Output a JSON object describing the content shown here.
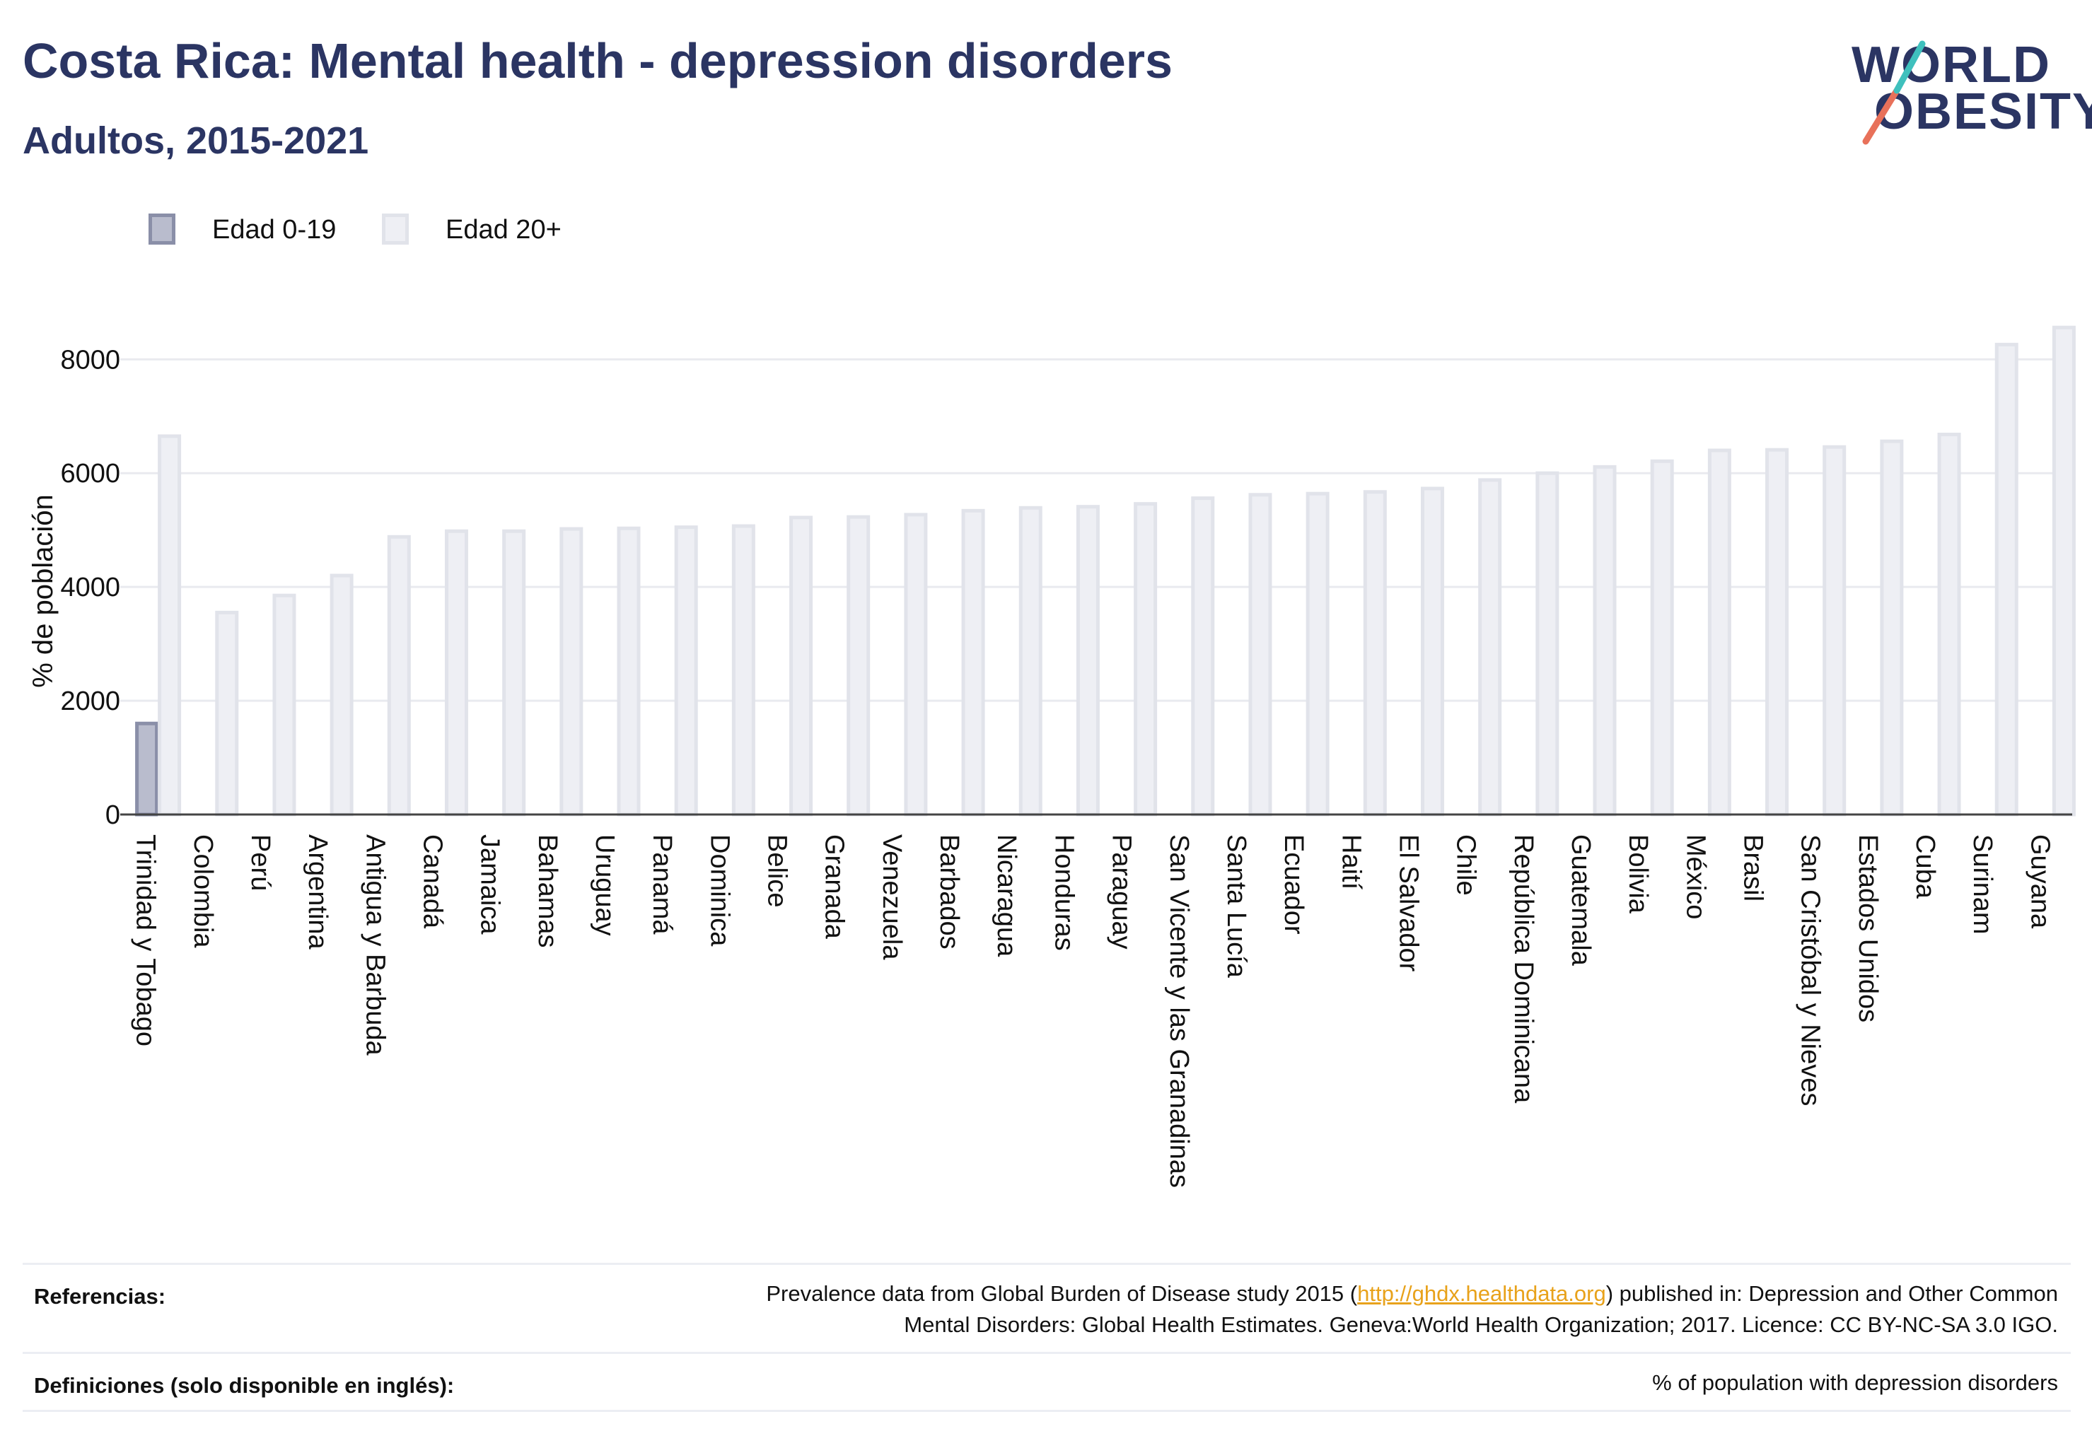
{
  "header": {
    "title": "Costa Rica: Mental health - depression disorders",
    "subtitle": "Adultos, 2015-2021"
  },
  "logo": {
    "line1": "WORLD",
    "line2": "OBESITY",
    "text_color": "#2b3563",
    "slash_colors": [
      "#e8715a",
      "#3fc0bd"
    ]
  },
  "legend": [
    {
      "label": "Edad 0-19",
      "fill": "#b9bccd",
      "stroke": "#8a8fa8"
    },
    {
      "label": "Edad 20+",
      "fill": "#eeeff4",
      "stroke": "#e1e3ea"
    }
  ],
  "chart_data": {
    "type": "bar",
    "ylabel": "% de población",
    "ylim": [
      0,
      8600
    ],
    "yticks": [
      0,
      2000,
      4000,
      6000,
      8000
    ],
    "grid": true,
    "categories": [
      "Trinidad y Tobago",
      "Colombia",
      "Perú",
      "Argentina",
      "Antigua y Barbuda",
      "Canadá",
      "Jamaica",
      "Bahamas",
      "Uruguay",
      "Panamá",
      "Dominica",
      "Belice",
      "Granada",
      "Venezuela",
      "Barbados",
      "Nicaragua",
      "Honduras",
      "Paraguay",
      "San Vicente y las Granadinas",
      "Santa Lucía",
      "Ecuador",
      "Haití",
      "El Salvador",
      "Chile",
      "República Dominicana",
      "Guatemala",
      "Bolivia",
      "México",
      "Brasil",
      "San Cristóbal y Nieves",
      "Estados Unidos",
      "Cuba",
      "Surinam",
      "Guyana"
    ],
    "series": [
      {
        "name": "Edad 0-19",
        "color": "#b9bccd",
        "values": [
          1600,
          null,
          null,
          null,
          null,
          null,
          null,
          null,
          null,
          null,
          null,
          null,
          null,
          null,
          null,
          null,
          null,
          null,
          null,
          null,
          null,
          null,
          null,
          null,
          null,
          null,
          null,
          null,
          null,
          null,
          null,
          null,
          null,
          null
        ]
      },
      {
        "name": "Edad 20+",
        "color": "#eeeff4",
        "values": [
          6650,
          3550,
          3850,
          4200,
          4880,
          4980,
          4980,
          5020,
          5030,
          5050,
          5070,
          5220,
          5230,
          5270,
          5340,
          5390,
          5410,
          5460,
          5560,
          5620,
          5640,
          5670,
          5730,
          5880,
          6000,
          6110,
          6210,
          6400,
          6410,
          6460,
          6560,
          6680,
          8260,
          8560
        ]
      }
    ]
  },
  "footer": {
    "references_label": "Referencias:",
    "references_text_pre": "Prevalence data from Global Burden of Disease study 2015 (",
    "references_link": "http://ghdx.healthdata.org",
    "references_text_post": ") published in: Depression and Other Common",
    "references_line2": "Mental Disorders: Global Health Estimates. Geneva:World Health Organization; 2017. Licence: CC BY-NC-SA 3.0 IGO.",
    "definitions_label": "Definiciones (solo disponible en inglés):",
    "definitions_text": "% of population with depression disorders"
  }
}
